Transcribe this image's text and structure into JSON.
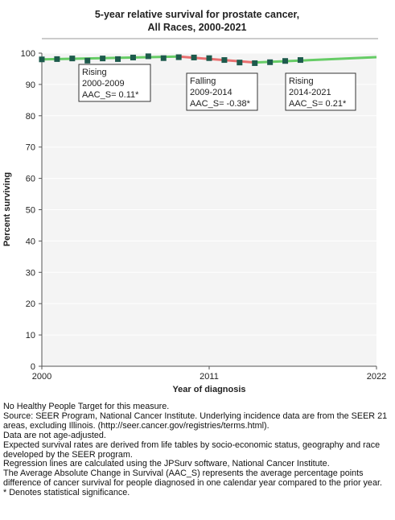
{
  "chart_data": {
    "type": "scatter",
    "title": [
      "5-year relative survival for prostate cancer,",
      "All Races,  2000-2021"
    ],
    "x_label": "Year of diagnosis",
    "y_label": "Percent surviving",
    "x": [
      2000,
      2001,
      2002,
      2003,
      2004,
      2005,
      2006,
      2007,
      2008,
      2009,
      2010,
      2011,
      2012,
      2013,
      2014,
      2015,
      2016,
      2017
    ],
    "values": [
      98.0,
      98.1,
      98.3,
      97.6,
      98.3,
      98.1,
      98.6,
      99.0,
      98.4,
      98.7,
      98.6,
      98.4,
      97.8,
      97.0,
      96.8,
      97.1,
      97.5,
      97.8
    ],
    "color": "#1d5a4c",
    "trends": [
      {
        "color": "#66cc66",
        "x": [
          2000,
          2009
        ],
        "values": [
          98.0,
          98.9
        ]
      },
      {
        "color": "#e87070",
        "x": [
          2009,
          2014
        ],
        "values": [
          98.9,
          97.0
        ]
      },
      {
        "color": "#66cc66",
        "x": [
          2014,
          2022
        ],
        "values": [
          97.0,
          98.7
        ]
      }
    ],
    "annotations": [
      [
        "Rising",
        "2000-2009",
        "AAC_S=  0.11*"
      ],
      [
        "Falling",
        "2009-2014",
        "AAC_S= -0.38*"
      ],
      [
        "Rising",
        "2014-2021",
        "AAC_S=  0.21*"
      ]
    ],
    "xlim": [
      2000,
      2022
    ],
    "xticks": [
      2000,
      2011,
      2022
    ],
    "ylim": [
      0,
      100
    ],
    "yticks": [
      0,
      10,
      20,
      30,
      40,
      50,
      60,
      70,
      80,
      90,
      100
    ],
    "grid": true,
    "notes": [
      "No Healthy People Target for this measure.",
      "Source: SEER Program, National Cancer Institute. Underlying incidence data are from the SEER 21 areas, excluding Illinois. (http://seer.cancer.gov/registries/terms.html).",
      "Data are not age-adjusted.",
      "Expected survival rates are derived from life tables by socio-economic status, geography and race developed by the SEER program.",
      "Regression lines are calculated using the JPSurv software, National Cancer Institute.",
      "The Average Absolute Change in Survival (AAC_S) represents the average percentage points difference of cancer survival for people diagnosed in one calendar year compared to the prior year.",
      "* Denotes statistical significance."
    ]
  }
}
